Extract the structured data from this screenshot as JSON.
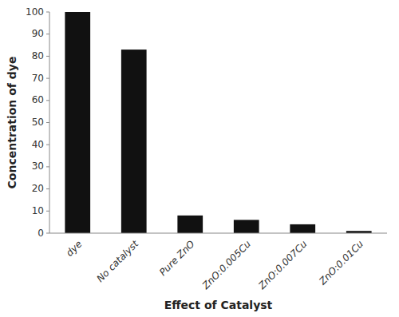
{
  "chart_data": {
    "type": "bar",
    "categories": [
      "dye",
      "No catalyst",
      "Pure ZnO",
      "ZnO:0.005Cu",
      "ZnO:0.007Cu",
      "ZnO:0.01Cu"
    ],
    "values": [
      100,
      83,
      8,
      6,
      4,
      1
    ],
    "color": "#111111",
    "xlabel": "Effect of Catalyst",
    "ylabel": "Concentration of dye",
    "ylim": [
      0,
      100
    ],
    "yticks": [
      0,
      10,
      20,
      30,
      40,
      50,
      60,
      70,
      80,
      90,
      100
    ],
    "grid": false
  }
}
